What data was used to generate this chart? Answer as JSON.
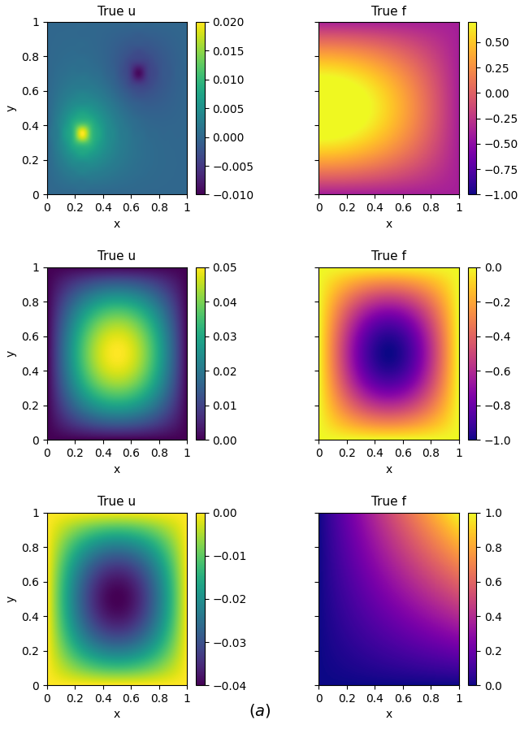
{
  "rows": [
    {
      "u_title": "True u",
      "f_title": "True f",
      "u_func": "row1_u",
      "f_func": "row1_f",
      "u_vmin": -0.01,
      "u_vmax": 0.02,
      "f_vmin": -1.0,
      "f_vmax": 0.7
    },
    {
      "u_title": "True u",
      "f_title": "True f",
      "u_func": "row2_u",
      "f_func": "row2_f",
      "u_vmin": 0.0,
      "u_vmax": 0.05,
      "f_vmin": -1.0,
      "f_vmax": 0.0
    },
    {
      "u_title": "True u",
      "f_title": "True f",
      "u_func": "row3_u",
      "f_func": "row3_f",
      "u_vmin": -0.04,
      "u_vmax": 0.0,
      "f_vmin": 0.0,
      "f_vmax": 1.0
    }
  ],
  "cmap_u": "viridis",
  "cmap_f": "plasma",
  "xlabel": "x",
  "ylabel": "y",
  "caption": "$(a)$",
  "n_points": 200,
  "tick_vals": [
    0,
    0.2,
    0.4,
    0.6,
    0.8,
    1
  ],
  "tick_labels": [
    "0",
    "0.2",
    "0.4",
    "0.6",
    "0.8",
    "1"
  ]
}
